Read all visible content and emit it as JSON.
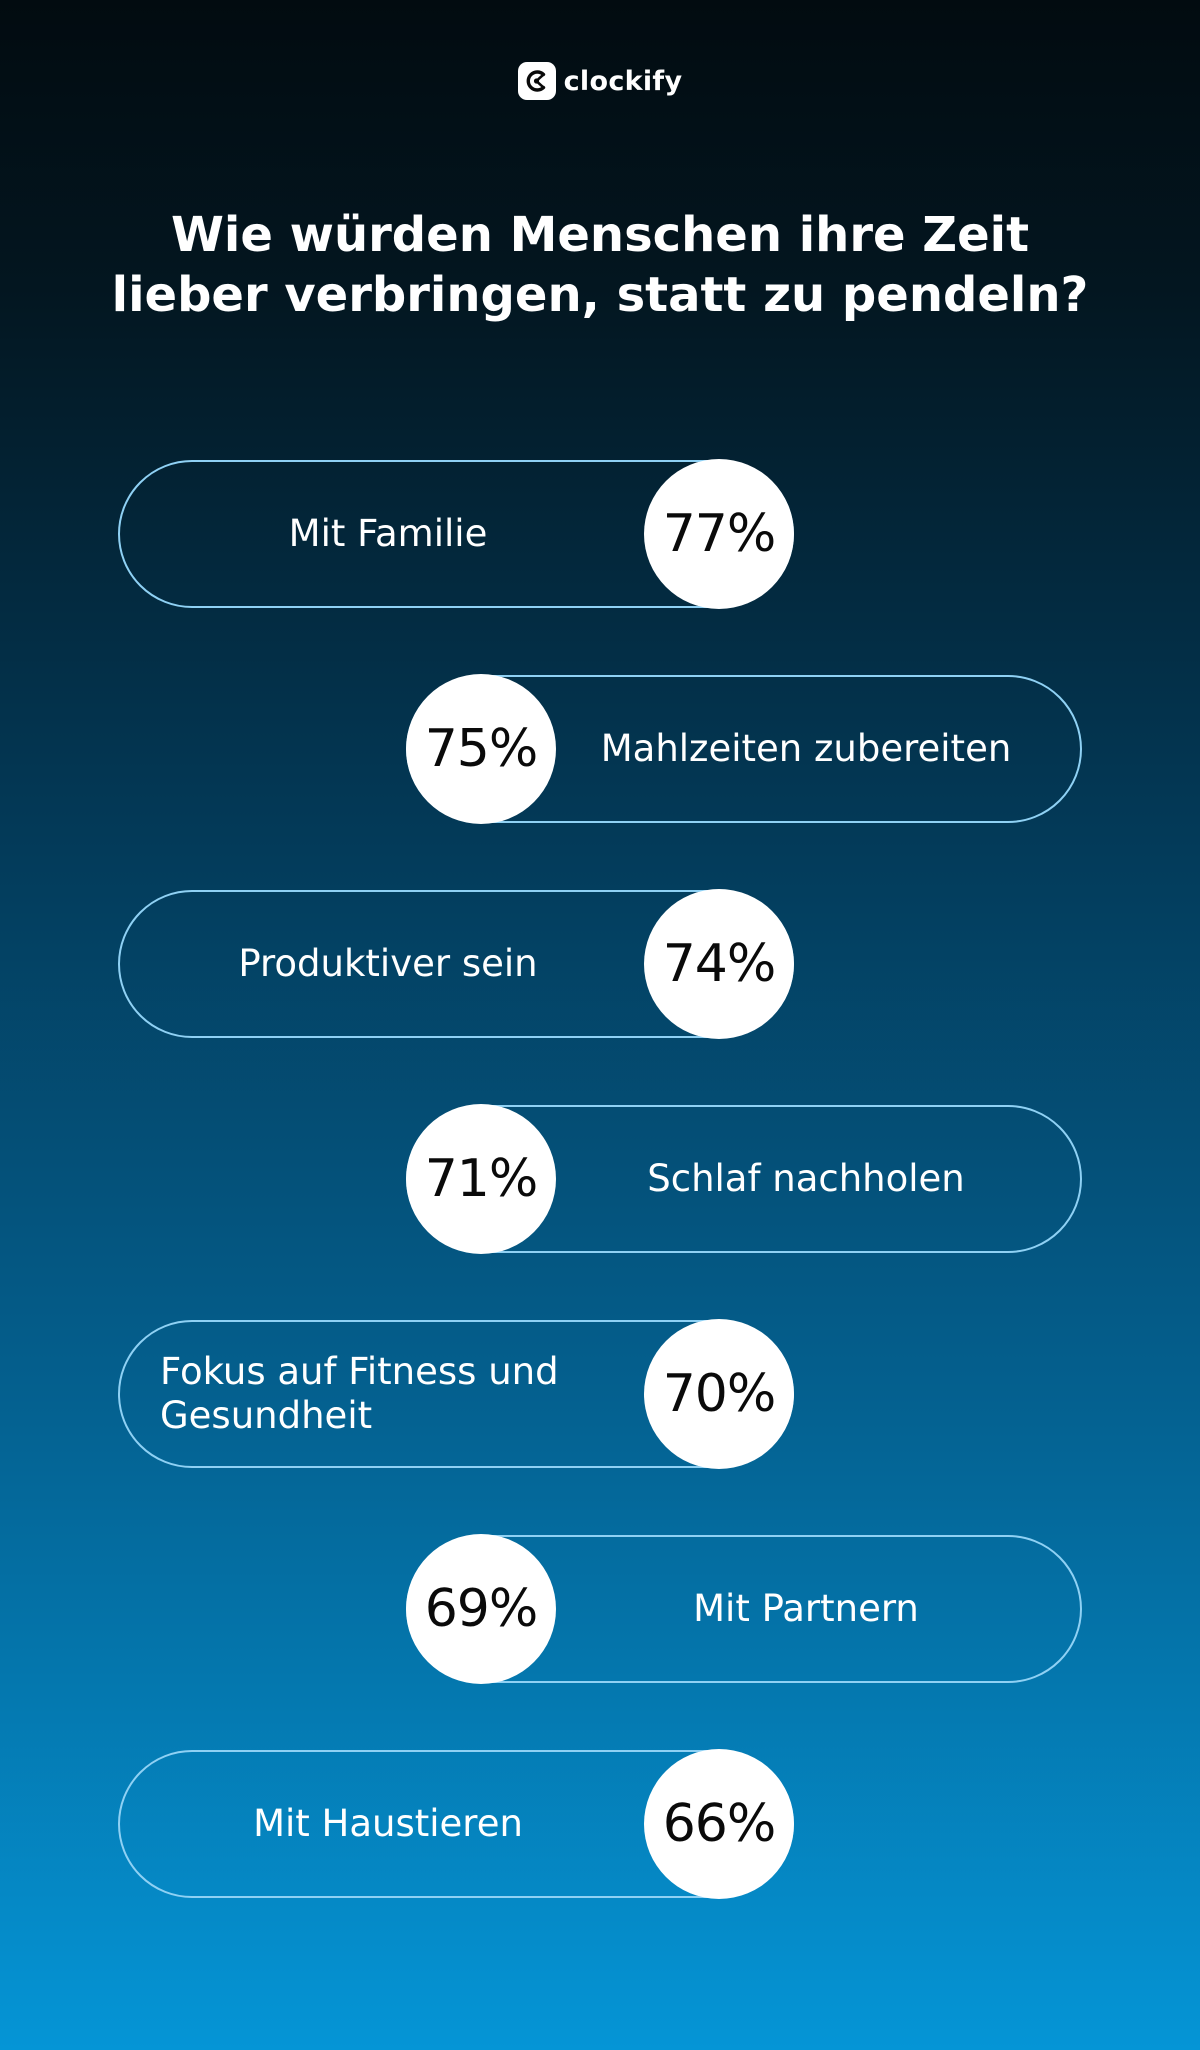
{
  "brand": {
    "name": "clockify",
    "logo_icon": "clockify-logo-icon"
  },
  "colors": {
    "pill_border": "#8fd1f4",
    "bubble_fill": "#ffffff",
    "bubble_text": "#0a0a0a",
    "bg_top": "#020b10",
    "bg_bottom": "#0595d6"
  },
  "chart_data": {
    "type": "bar",
    "title_lines": [
      "Wie würden Menschen ihre Zeit",
      "lieber verbringen, statt zu pendeln?"
    ],
    "categories": [
      "Mit Familie",
      "Mahlzeiten zubereiten",
      "Produktiver sein",
      "Schlaf nachholen",
      "Fokus auf Fitness und Gesundheit",
      "Mit Partnern",
      "Mit Haustieren"
    ],
    "values": [
      77,
      75,
      74,
      71,
      70,
      69,
      66
    ],
    "value_labels": [
      "77%",
      "75%",
      "74%",
      "71%",
      "70%",
      "69%",
      "66%"
    ],
    "unit": "%",
    "grid": false,
    "legend": false
  }
}
